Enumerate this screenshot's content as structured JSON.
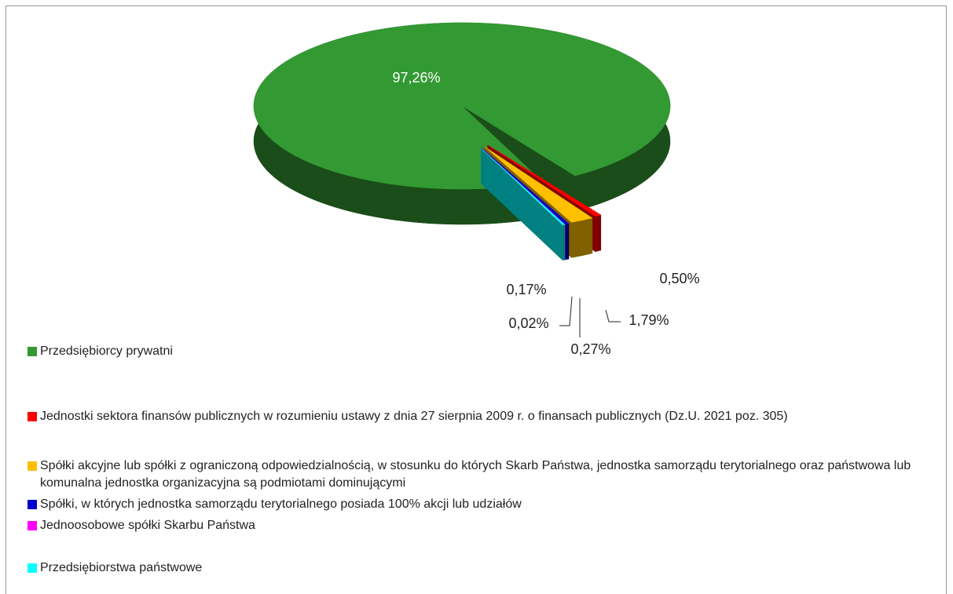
{
  "chart_data": {
    "type": "pie",
    "categories": [
      "Przedsiębiorcy prywatni",
      "Jednostki sektora finansów publicznych w rozumieniu ustawy z dnia 27 sierpnia 2009 r. o finansach publicznych (Dz.U. 2021 poz. 305)",
      "Spółki akcyjne lub spółki z ograniczoną odpowiedzialnością, w stosunku do których Skarb Państwa, jednostka samorządu terytorialnego oraz państwowa lub komunalna jednostka organizacyjna są podmiotami dominującymi",
      "Spółki, w których jednostka samorządu terytorialnego posiada 100% akcji lub udziałów",
      "Jednoosobowe spółki Skarbu Państwa",
      "Przedsiębiorstwa państwowe"
    ],
    "values": [
      97.26,
      0.5,
      1.79,
      0.27,
      0.02,
      0.17
    ],
    "value_labels": [
      "97,26%",
      "0,50%",
      "1,79%",
      "0,27%",
      "0,02%",
      "0,17%"
    ],
    "colors": [
      "#339933",
      "#ff0000",
      "#ffc000",
      "#0000cc",
      "#ff00ff",
      "#00ffff"
    ],
    "legend": "bottom"
  }
}
